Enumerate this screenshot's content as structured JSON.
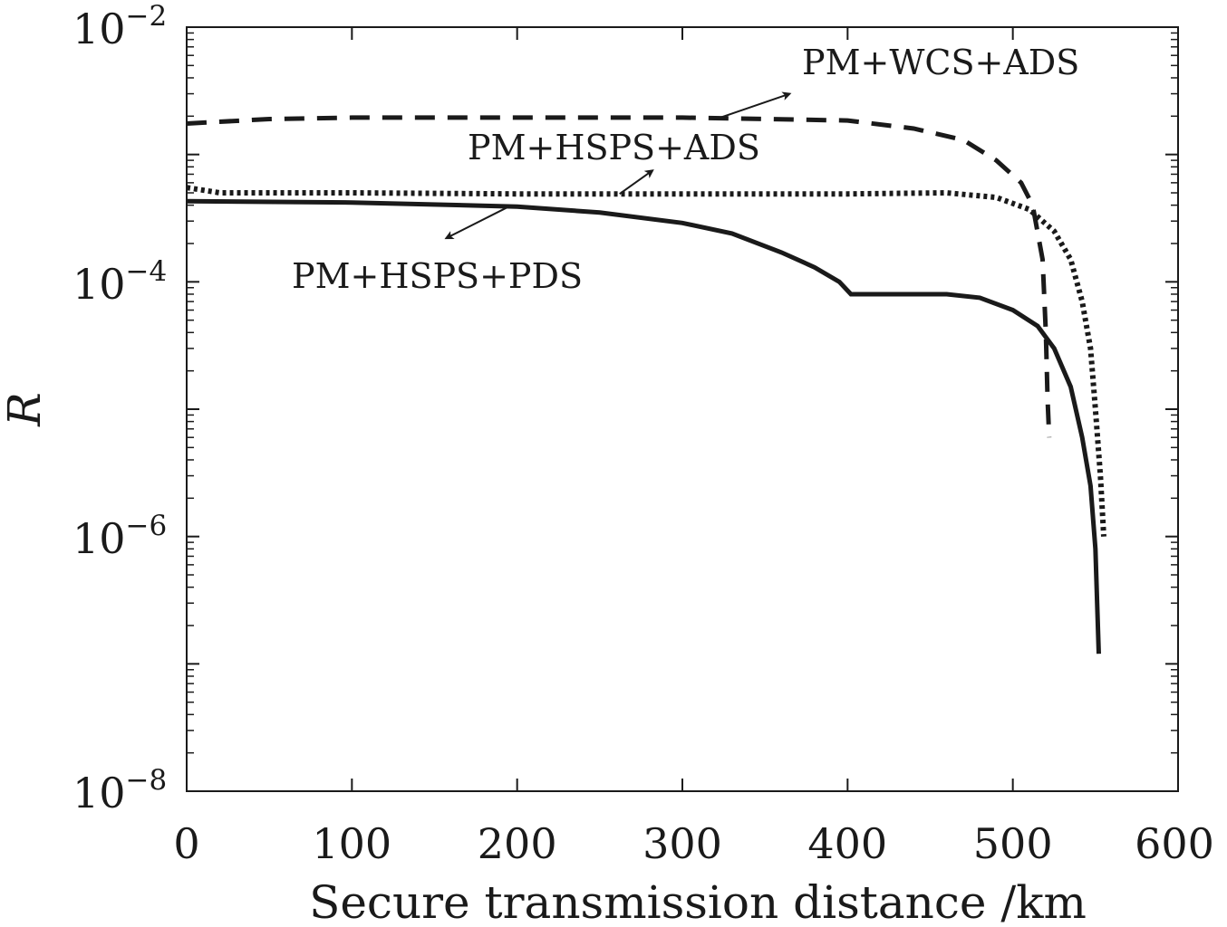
{
  "chart_data": {
    "type": "line",
    "title": "",
    "xlabel": "Secure transmission distance /km",
    "ylabel": "R",
    "xlim": [
      0,
      600
    ],
    "ylim": [
      1e-08,
      0.01
    ],
    "yscale": "log",
    "grid": false,
    "legend": "none",
    "x_ticks": [
      0,
      100,
      200,
      300,
      400,
      500,
      600
    ],
    "y_ticks": [
      {
        "value": 0.01,
        "base": "10",
        "exp": "−2"
      },
      {
        "value": 0.0001,
        "base": "10",
        "exp": "−4"
      },
      {
        "value": 1e-06,
        "base": "10",
        "exp": "−6"
      },
      {
        "value": 1e-08,
        "base": "10",
        "exp": "−8"
      }
    ],
    "series": [
      {
        "style": "dashed",
        "color": "#1a1a1a",
        "x": [
          0,
          50,
          100,
          200,
          300,
          400,
          440,
          470,
          490,
          505,
          512,
          518,
          520,
          521,
          522
        ],
        "y": [
          0.00175,
          0.0019,
          0.00195,
          0.00195,
          0.00195,
          0.00185,
          0.0016,
          0.0013,
          0.0009,
          0.0006,
          0.0004,
          0.00015,
          4e-05,
          1.2e-05,
          6e-06
        ]
      },
      {
        "style": "dotted",
        "color": "#1a1a1a",
        "x": [
          0,
          20,
          100,
          200,
          300,
          400,
          460,
          490,
          510,
          525,
          535,
          542,
          547,
          550,
          553,
          555
        ],
        "y": [
          0.00055,
          0.0005,
          0.0005,
          0.00049,
          0.00049,
          0.00049,
          0.0005,
          0.00046,
          0.00037,
          0.00025,
          0.00015,
          7e-05,
          3e-05,
          1e-05,
          3e-06,
          1e-06
        ]
      },
      {
        "style": "solid",
        "color": "#1a1a1a",
        "x": [
          0,
          100,
          200,
          250,
          300,
          330,
          360,
          380,
          395,
          402,
          420,
          460,
          480,
          500,
          515,
          525,
          535,
          542,
          547,
          550,
          551,
          552
        ],
        "y": [
          0.00043,
          0.00042,
          0.00039,
          0.00035,
          0.00029,
          0.00024,
          0.00017,
          0.00013,
          0.0001,
          8e-05,
          8e-05,
          8e-05,
          7.5e-05,
          6e-05,
          4.5e-05,
          3e-05,
          1.5e-05,
          6e-06,
          2.5e-06,
          8e-07,
          3e-07,
          1.2e-07
        ]
      }
    ],
    "annotations": [
      {
        "text": "PM+WCS+ADS",
        "arrow_from": [
          323,
          0.00195
        ],
        "arrow_to": [
          365,
          0.003
        ]
      },
      {
        "text": "PM+HSPS+ADS",
        "arrow_from": [
          262,
          0.00049
        ],
        "arrow_to": [
          282,
          0.00075
        ]
      },
      {
        "text": "PM+HSPS+PDS",
        "arrow_from": [
          195,
          0.00039
        ],
        "arrow_to": [
          157,
          0.00022
        ]
      }
    ]
  }
}
